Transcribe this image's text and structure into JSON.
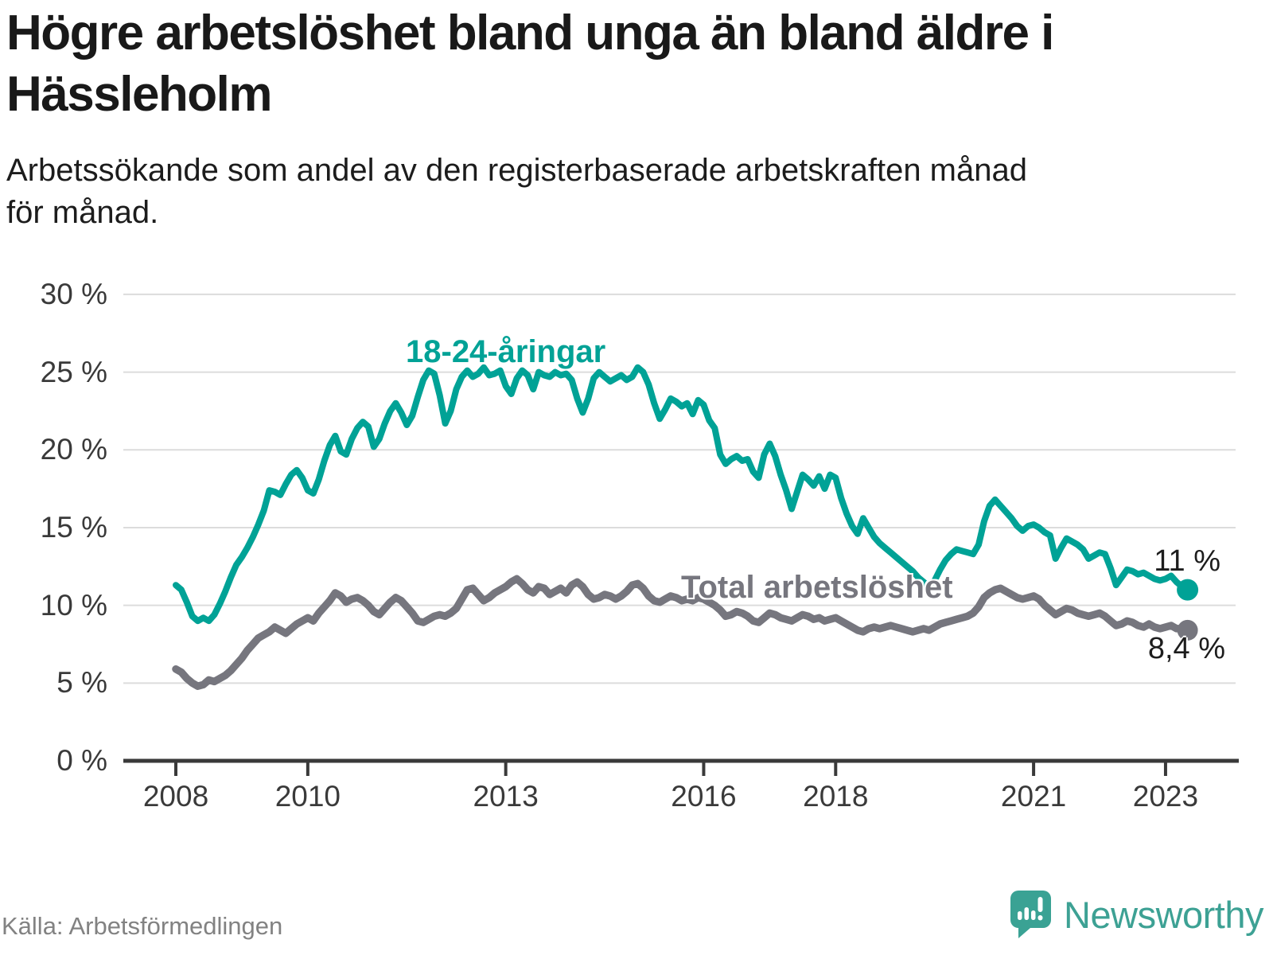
{
  "header": {
    "title": "Högre arbetslöshet bland unga än bland äldre i\nHässleholm",
    "subtitle": "Arbetssökande som andel av den registerbaserade arbetskraften månad\nför månad."
  },
  "footer": {
    "source": "Källa: Arbetsförmedlingen",
    "brand": "Newsworthy"
  },
  "colors": {
    "youth_line": "#00a296",
    "total_line": "#76767e",
    "grid": "#dcdcdc",
    "axis": "#3a3a3a",
    "text": "#1d1d1d",
    "brand_teal": "#3da194"
  },
  "chart_data": {
    "type": "line",
    "title": "Högre arbetslöshet bland unga än bland äldre i Hässleholm",
    "subtitle": "Arbetssökande som andel av den registerbaserade arbetskraften månad för månad.",
    "unit": "%",
    "interval": "monthly",
    "x_start": "2008-01",
    "x_end": "2023-05",
    "ylim": [
      0,
      30
    ],
    "grid": "horizontal",
    "legend_position": "inline",
    "y_ticks": [
      {
        "value": 30,
        "label": "30 %"
      },
      {
        "value": 25,
        "label": "25 %"
      },
      {
        "value": 20,
        "label": "20 %"
      },
      {
        "value": 15,
        "label": "15 %"
      },
      {
        "value": 10,
        "label": "10 %"
      },
      {
        "value": 5,
        "label": "5 %"
      },
      {
        "value": 0,
        "label": "0 %"
      }
    ],
    "x_ticks": [
      {
        "value": 2008,
        "label": "2008"
      },
      {
        "value": 2010,
        "label": "2010"
      },
      {
        "value": 2013,
        "label": "2013"
      },
      {
        "value": 2016,
        "label": "2016"
      },
      {
        "value": 2018,
        "label": "2018"
      },
      {
        "value": 2021,
        "label": "2021"
      },
      {
        "value": 2023,
        "label": "2023"
      }
    ],
    "series": [
      {
        "name": "18-24-åringar",
        "color": "#00a296",
        "end_label": "11 %",
        "end_value": 11.0,
        "values": [
          11.3,
          11.0,
          10.2,
          9.3,
          9.0,
          9.2,
          9.0,
          9.4,
          10.1,
          10.9,
          11.8,
          12.6,
          13.1,
          13.7,
          14.4,
          15.2,
          16.1,
          17.4,
          17.3,
          17.1,
          17.8,
          18.4,
          18.7,
          18.2,
          17.4,
          17.2,
          18.1,
          19.3,
          20.3,
          20.9,
          19.9,
          19.7,
          20.7,
          21.4,
          21.8,
          21.5,
          20.2,
          20.7,
          21.7,
          22.5,
          23.0,
          22.4,
          21.6,
          22.2,
          23.4,
          24.5,
          25.1,
          24.9,
          23.5,
          21.7,
          22.5,
          23.9,
          24.7,
          25.1,
          24.7,
          24.9,
          25.3,
          24.8,
          24.9,
          25.1,
          24.1,
          23.6,
          24.6,
          25.1,
          24.8,
          23.9,
          25.0,
          24.8,
          24.7,
          25.0,
          24.8,
          24.9,
          24.5,
          23.3,
          22.4,
          23.3,
          24.6,
          25.0,
          24.7,
          24.4,
          24.6,
          24.8,
          24.5,
          24.7,
          25.3,
          25.0,
          24.2,
          23.0,
          22.0,
          22.6,
          23.3,
          23.1,
          22.8,
          23.0,
          22.3,
          23.2,
          22.9,
          21.9,
          21.4,
          19.7,
          19.1,
          19.4,
          19.6,
          19.3,
          19.4,
          18.6,
          18.2,
          19.7,
          20.4,
          19.6,
          18.4,
          17.4,
          16.2,
          17.3,
          18.4,
          18.1,
          17.7,
          18.3,
          17.5,
          18.4,
          18.2,
          16.9,
          15.9,
          15.1,
          14.6,
          15.6,
          15.0,
          14.4,
          14.0,
          13.7,
          13.4,
          13.1,
          12.8,
          12.5,
          12.2,
          11.8,
          11.5,
          11.2,
          11.6,
          12.3,
          12.9,
          13.3,
          13.6,
          13.5,
          13.4,
          13.3,
          13.9,
          15.4,
          16.4,
          16.8,
          16.4,
          16.0,
          15.6,
          15.1,
          14.8,
          15.1,
          15.2,
          15.0,
          14.7,
          14.5,
          13.0,
          13.7,
          14.3,
          14.1,
          13.9,
          13.6,
          13.0,
          13.2,
          13.4,
          13.3,
          12.4,
          11.3,
          11.8,
          12.3,
          12.2,
          12.0,
          12.1,
          11.9,
          11.7,
          11.6,
          11.7,
          11.9,
          11.5,
          11.2,
          11.0
        ]
      },
      {
        "name": "Total arbetslöshet",
        "color": "#76767e",
        "end_label": "8,4 %",
        "end_value": 8.4,
        "values": [
          5.9,
          5.7,
          5.3,
          5.0,
          4.8,
          4.9,
          5.2,
          5.1,
          5.3,
          5.5,
          5.8,
          6.2,
          6.6,
          7.1,
          7.5,
          7.9,
          8.1,
          8.3,
          8.6,
          8.4,
          8.2,
          8.5,
          8.8,
          9.0,
          9.2,
          9.0,
          9.5,
          9.9,
          10.3,
          10.8,
          10.6,
          10.2,
          10.4,
          10.5,
          10.3,
          10.0,
          9.6,
          9.4,
          9.8,
          10.2,
          10.5,
          10.3,
          9.9,
          9.5,
          9.0,
          8.9,
          9.1,
          9.3,
          9.4,
          9.3,
          9.5,
          9.8,
          10.4,
          11.0,
          11.1,
          10.7,
          10.3,
          10.5,
          10.8,
          11.0,
          11.2,
          11.5,
          11.7,
          11.4,
          11.0,
          10.8,
          11.2,
          11.1,
          10.7,
          10.9,
          11.1,
          10.8,
          11.3,
          11.5,
          11.2,
          10.7,
          10.4,
          10.5,
          10.7,
          10.6,
          10.4,
          10.6,
          10.9,
          11.3,
          11.4,
          11.1,
          10.6,
          10.3,
          10.2,
          10.4,
          10.6,
          10.5,
          10.3,
          10.4,
          10.3,
          10.5,
          10.4,
          10.2,
          10.0,
          9.7,
          9.3,
          9.4,
          9.6,
          9.5,
          9.3,
          9.0,
          8.9,
          9.2,
          9.5,
          9.4,
          9.2,
          9.1,
          9.0,
          9.2,
          9.4,
          9.3,
          9.1,
          9.2,
          9.0,
          9.1,
          9.2,
          9.0,
          8.8,
          8.6,
          8.4,
          8.3,
          8.5,
          8.6,
          8.5,
          8.6,
          8.7,
          8.6,
          8.5,
          8.4,
          8.3,
          8.4,
          8.5,
          8.4,
          8.6,
          8.8,
          8.9,
          9.0,
          9.1,
          9.2,
          9.3,
          9.5,
          9.9,
          10.5,
          10.8,
          11.0,
          11.1,
          10.9,
          10.7,
          10.5,
          10.4,
          10.5,
          10.6,
          10.4,
          10.0,
          9.7,
          9.4,
          9.6,
          9.8,
          9.7,
          9.5,
          9.4,
          9.3,
          9.4,
          9.5,
          9.3,
          9.0,
          8.7,
          8.8,
          9.0,
          8.9,
          8.7,
          8.6,
          8.8,
          8.6,
          8.5,
          8.6,
          8.7,
          8.5,
          8.5,
          8.4
        ]
      }
    ]
  }
}
